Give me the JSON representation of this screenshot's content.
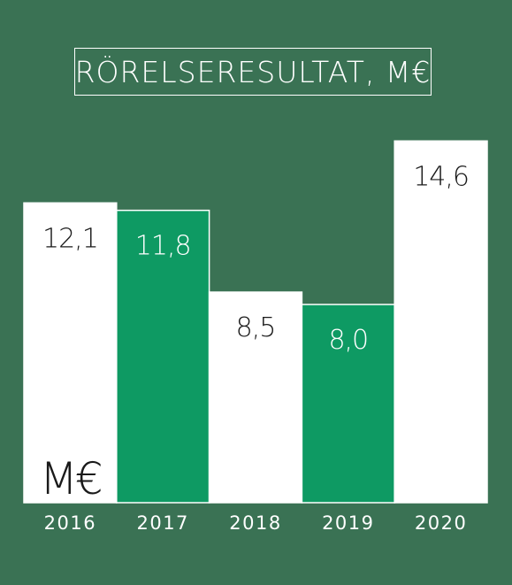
{
  "chart_data": {
    "type": "bar",
    "title": "RÖRELSERESULTAT, M€",
    "unit_label": "M€",
    "categories": [
      "2016",
      "2017",
      "2018",
      "2019",
      "2020"
    ],
    "values": [
      12.1,
      11.8,
      8.5,
      8.0,
      14.6
    ],
    "value_labels": [
      "12,1",
      "11,8",
      "8,5",
      "8,0",
      "14,6"
    ],
    "ylim": [
      0,
      15.36
    ],
    "xlabel": "",
    "ylabel": "",
    "grid": false,
    "colors": {
      "background": "#3a7254",
      "bar_light": "#ffffff",
      "bar_accent": "#0e9a63",
      "label_on_light": "#1a1a1a",
      "label_on_accent": "#ffffff",
      "tick_text": "#ffffff"
    },
    "bar_color_pattern": [
      "light",
      "accent",
      "light",
      "accent",
      "light"
    ]
  }
}
